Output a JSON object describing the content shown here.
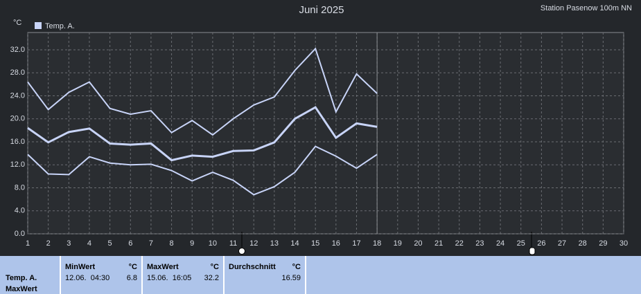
{
  "chart_data": {
    "type": "line",
    "title": "Juni 2025",
    "subtitle": "Station Pasenow 100m NN",
    "y_label": "°C",
    "legend": "Temp. A.",
    "x": [
      1,
      2,
      3,
      4,
      5,
      6,
      7,
      8,
      9,
      10,
      11,
      12,
      13,
      14,
      15,
      16,
      17,
      18
    ],
    "series": [
      {
        "color": "#c8d4f8",
        "values": [
          26.4,
          21.6,
          24.6,
          26.4,
          21.8,
          20.8,
          21.4,
          17.6,
          19.7,
          17.2,
          20.0,
          22.4,
          23.8,
          28.4,
          32.2,
          21.2,
          27.8,
          24.4
        ]
      },
      {
        "color": "#c8d4f8",
        "values": [
          18.4,
          15.9,
          17.7,
          18.3,
          15.7,
          15.5,
          15.7,
          12.8,
          13.6,
          13.4,
          14.4,
          14.5,
          15.9,
          20.0,
          22.0,
          16.7,
          19.2,
          18.6
        ]
      },
      {
        "color": "#c8d4f8",
        "values": [
          13.8,
          10.4,
          10.3,
          13.4,
          12.3,
          12.0,
          12.1,
          11.0,
          9.2,
          10.7,
          9.3,
          6.8,
          8.2,
          10.7,
          15.2,
          13.5,
          11.4,
          13.8
        ]
      }
    ],
    "xlim": [
      1,
      30
    ],
    "xticks": [
      1,
      2,
      3,
      4,
      5,
      6,
      7,
      8,
      9,
      10,
      11,
      12,
      13,
      14,
      15,
      16,
      17,
      18,
      19,
      20,
      21,
      22,
      23,
      24,
      25,
      26,
      27,
      28,
      29,
      30
    ],
    "ylim": [
      0,
      35
    ],
    "yticks": [
      {
        "value": 0,
        "label": "0.0"
      },
      {
        "value": 4,
        "label": "4.0"
      },
      {
        "value": 8,
        "label": "8.0"
      },
      {
        "value": 12,
        "label": "12.0"
      },
      {
        "value": 16,
        "label": "16.0"
      },
      {
        "value": 20,
        "label": "20.0"
      },
      {
        "value": 24,
        "label": "24.0"
      },
      {
        "value": 28,
        "label": "28.0"
      },
      {
        "value": 32,
        "label": "32.0"
      }
    ],
    "current_day": 18,
    "grid": true
  },
  "summary": {
    "row_label": [
      "Temp. A.",
      "MaxWert"
    ],
    "columns": [
      {
        "header": "MinWert",
        "unit": "°C",
        "date": "12.06.  04:30",
        "value": "6.8"
      },
      {
        "header": "MaxWert",
        "unit": "°C",
        "date": "15.06.  16:05",
        "value": "32.2"
      },
      {
        "header": "Durchschnitt",
        "unit": "°C",
        "value": "16.59"
      }
    ]
  }
}
